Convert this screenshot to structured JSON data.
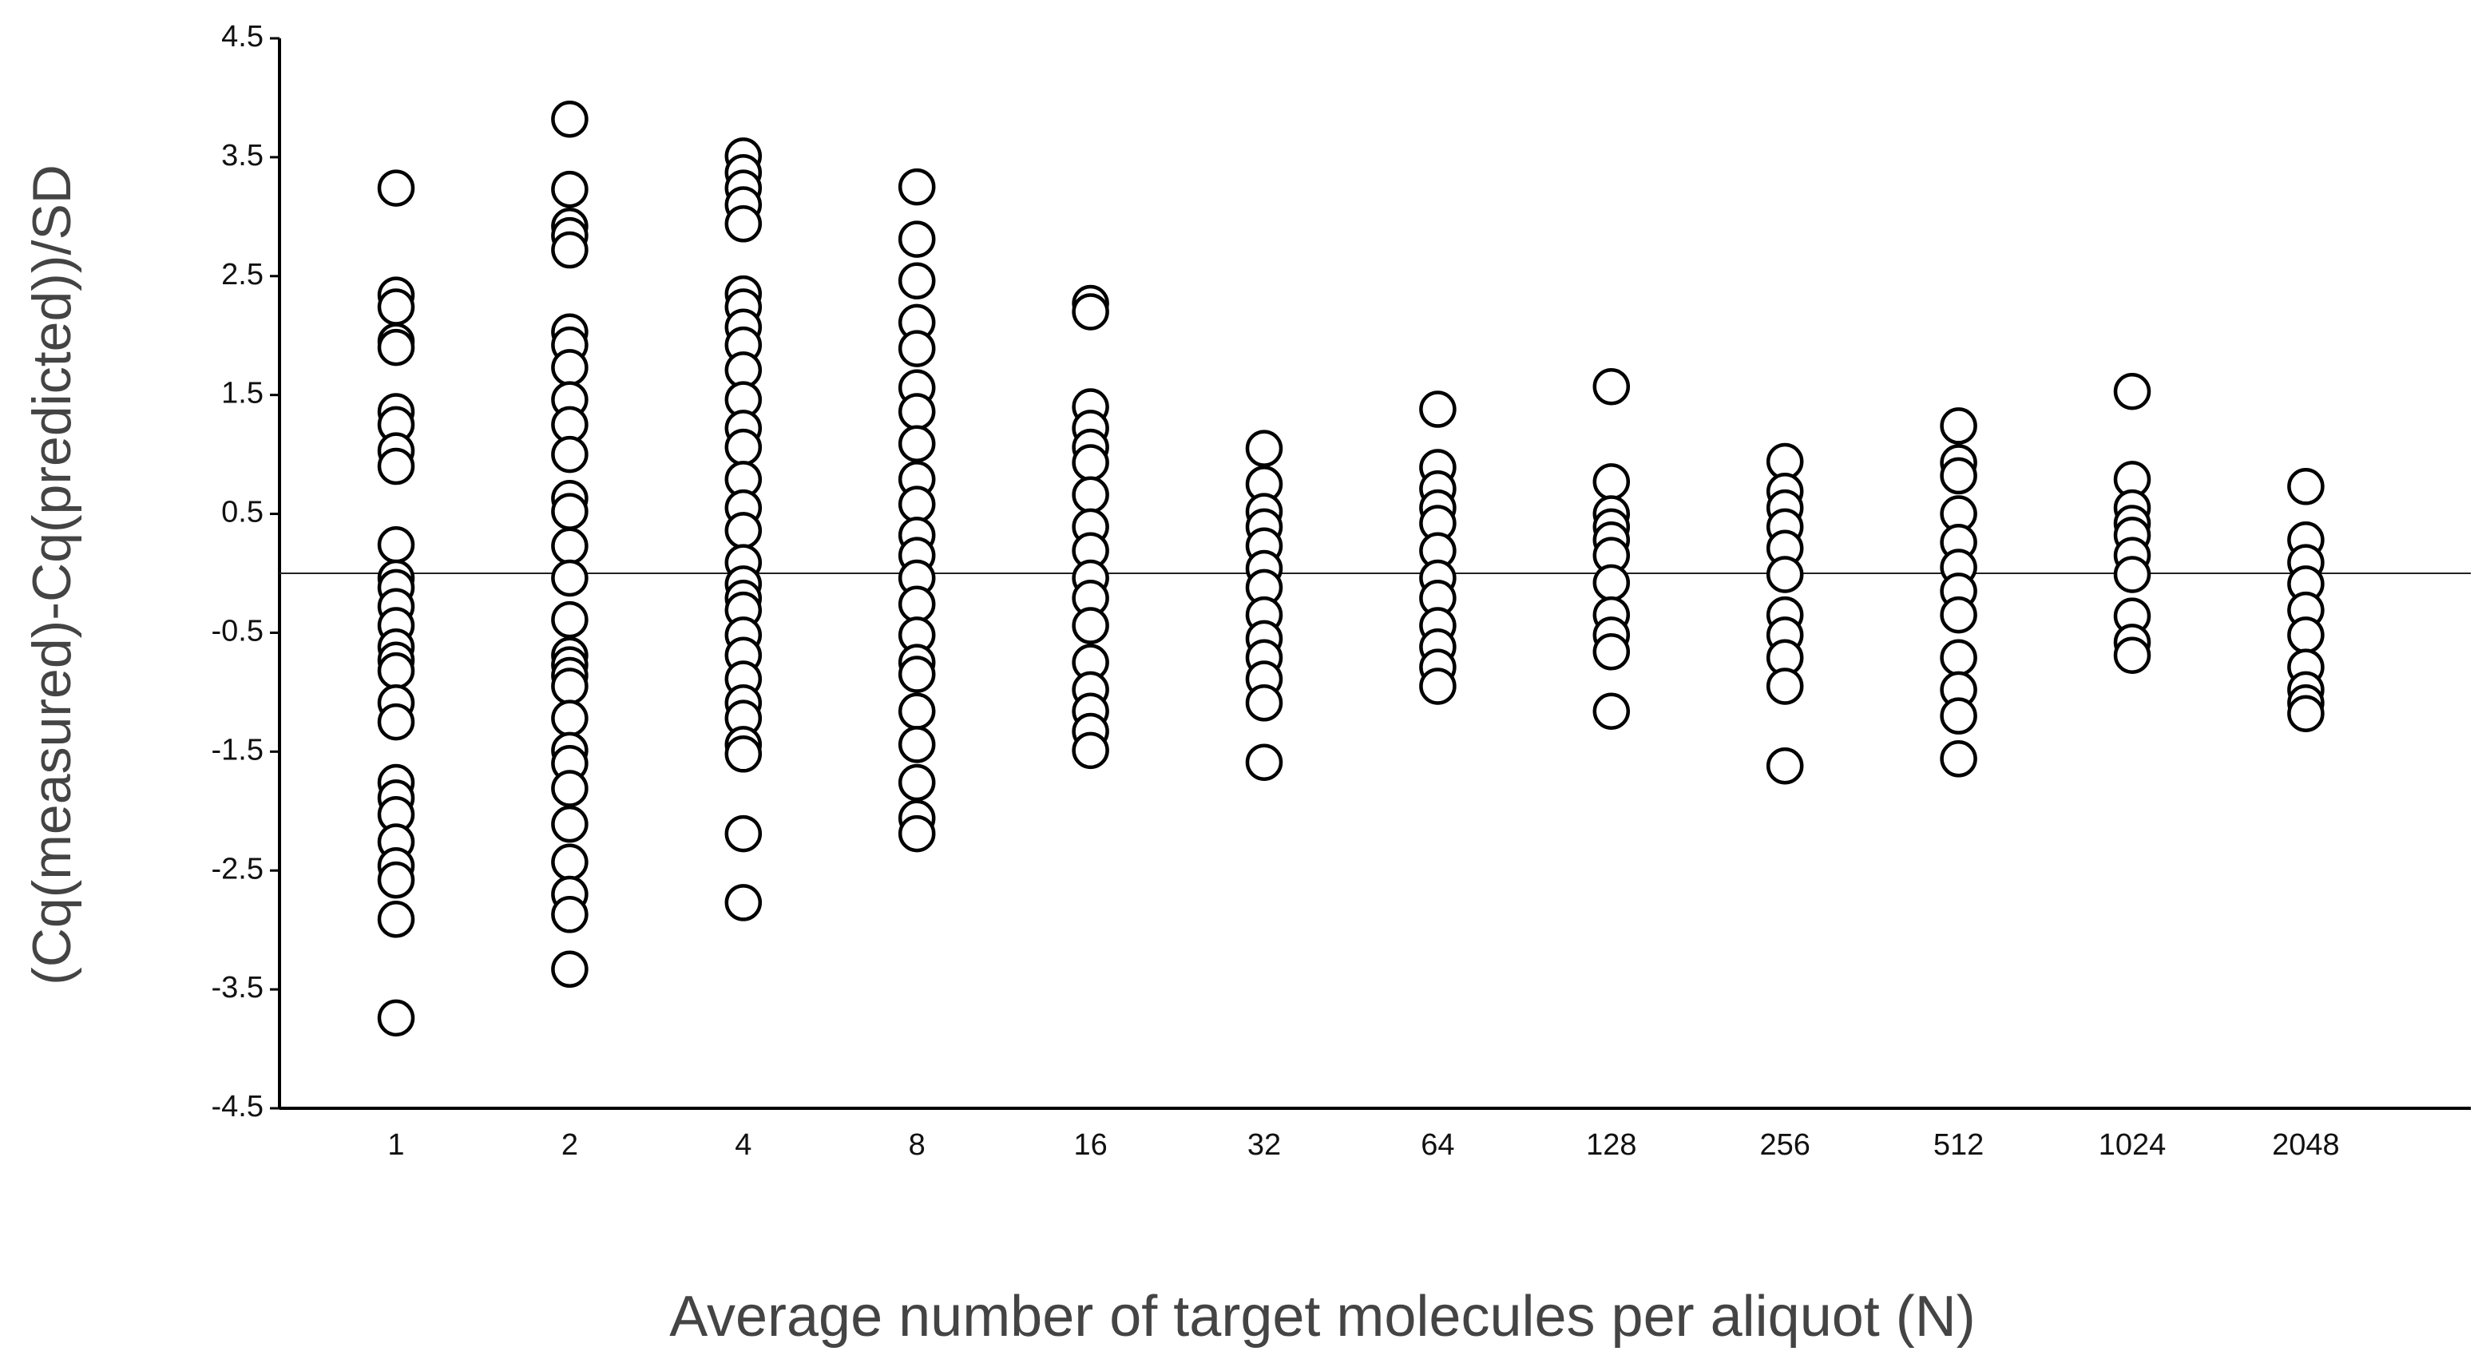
{
  "chart_data": {
    "type": "strip",
    "x_label": "Average number of target molecules per aliquot (N)",
    "y_label": "(Cq(measured)-Cq(predicted))/SD",
    "categories": [
      "1",
      "2",
      "4",
      "8",
      "16",
      "32",
      "64",
      "128",
      "256",
      "512",
      "1024",
      "2048"
    ],
    "values": [
      [
        3.24,
        2.34,
        2.24,
        1.95,
        1.9,
        1.36,
        1.25,
        1.03,
        0.9,
        0.24,
        -0.04,
        -0.12,
        -0.28,
        -0.44,
        -0.62,
        -0.73,
        -0.82,
        -1.09,
        -1.25,
        -1.76,
        -1.89,
        -2.03,
        -2.26,
        -2.46,
        -2.58,
        -2.91,
        -3.74
      ],
      [
        3.82,
        3.23,
        2.92,
        2.84,
        2.72,
        2.03,
        1.92,
        1.73,
        1.46,
        1.25,
        1.0,
        0.63,
        0.52,
        0.23,
        -0.04,
        -0.39,
        -0.69,
        -0.77,
        -0.86,
        -0.95,
        -1.22,
        -1.49,
        -1.6,
        -1.81,
        -2.11,
        -2.43,
        -2.7,
        -2.87,
        -3.33
      ],
      [
        3.51,
        3.37,
        3.24,
        3.1,
        2.94,
        2.35,
        2.24,
        2.07,
        1.92,
        1.71,
        1.46,
        1.22,
        1.06,
        0.79,
        0.55,
        0.36,
        0.09,
        -0.09,
        -0.21,
        -0.31,
        -0.52,
        -0.69,
        -0.89,
        -1.09,
        -1.22,
        -1.44,
        -1.52,
        -2.19,
        -2.77
      ],
      [
        3.25,
        2.81,
        2.46,
        2.11,
        1.89,
        1.56,
        1.36,
        1.09,
        0.79,
        0.58,
        0.32,
        0.15,
        -0.04,
        -0.26,
        -0.52,
        -0.75,
        -0.85,
        -1.16,
        -1.44,
        -1.76,
        -2.06,
        -2.19
      ],
      [
        2.27,
        2.2,
        1.4,
        1.22,
        1.06,
        0.93,
        0.66,
        0.39,
        0.19,
        -0.04,
        -0.21,
        -0.44,
        -0.75,
        -0.98,
        -1.16,
        -1.33,
        -1.49
      ],
      [
        1.05,
        0.75,
        0.52,
        0.39,
        0.23,
        0.04,
        -0.12,
        -0.35,
        -0.55,
        -0.71,
        -0.89,
        -1.09,
        -1.59
      ],
      [
        1.38,
        0.89,
        0.71,
        0.55,
        0.42,
        0.19,
        -0.04,
        -0.21,
        -0.44,
        -0.62,
        -0.79,
        -0.95
      ],
      [
        1.57,
        0.77,
        0.5,
        0.39,
        0.28,
        0.15,
        -0.08,
        -0.35,
        -0.52,
        -0.66,
        -1.16
      ],
      [
        0.94,
        0.69,
        0.55,
        0.39,
        0.21,
        -0.01,
        -0.35,
        -0.52,
        -0.71,
        -0.95,
        -1.62
      ],
      [
        1.24,
        0.93,
        0.82,
        0.5,
        0.26,
        0.05,
        -0.15,
        -0.35,
        -0.71,
        -0.98,
        -1.2,
        -1.56
      ],
      [
        1.53,
        0.79,
        0.55,
        0.42,
        0.32,
        0.15,
        -0.01,
        -0.36,
        -0.58,
        -0.69
      ],
      [
        0.73,
        0.28,
        0.09,
        -0.09,
        -0.31,
        -0.52,
        -0.79,
        -0.98,
        -1.09,
        -1.18
      ]
    ],
    "ylim": [
      -4.5,
      4.5
    ],
    "yticks": [
      -4.5,
      -3.5,
      -2.5,
      -1.5,
      -0.5,
      0.5,
      1.5,
      2.5,
      3.5,
      4.5
    ],
    "hline": 0,
    "marker_fill": "#ffffff",
    "marker_stroke": "#000000"
  }
}
